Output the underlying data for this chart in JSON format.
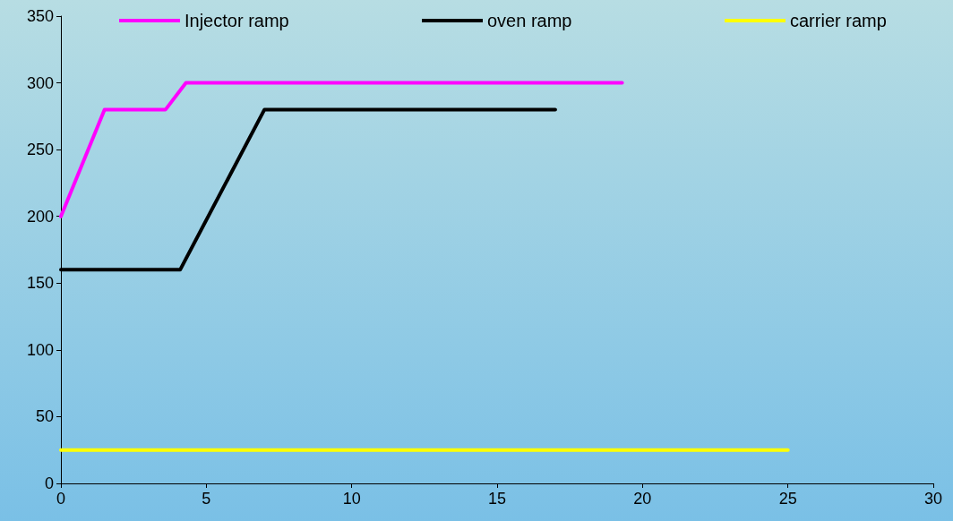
{
  "chart_data": {
    "type": "line",
    "xlim": [
      0,
      30
    ],
    "xticks": [
      0,
      5,
      10,
      15,
      20,
      25,
      30
    ],
    "ylim": [
      0,
      350
    ],
    "yticks": [
      0,
      50,
      100,
      150,
      200,
      250,
      300,
      350
    ],
    "grid": false,
    "legend": "top",
    "marker": "none",
    "line_style": "solid",
    "series": [
      {
        "name": "Injector ramp",
        "color": "#ff00ff",
        "x": [
          0,
          1.5,
          3.6,
          4.3,
          19.3
        ],
        "values": [
          200,
          280,
          280,
          300,
          300
        ]
      },
      {
        "name": "oven ramp",
        "color": "#000000",
        "x": [
          0,
          4.1,
          7,
          17
        ],
        "values": [
          160,
          160,
          280,
          280
        ]
      },
      {
        "name": "carrier ramp",
        "color": "#ffff00",
        "x": [
          0,
          25
        ],
        "values": [
          25,
          25
        ]
      }
    ]
  }
}
